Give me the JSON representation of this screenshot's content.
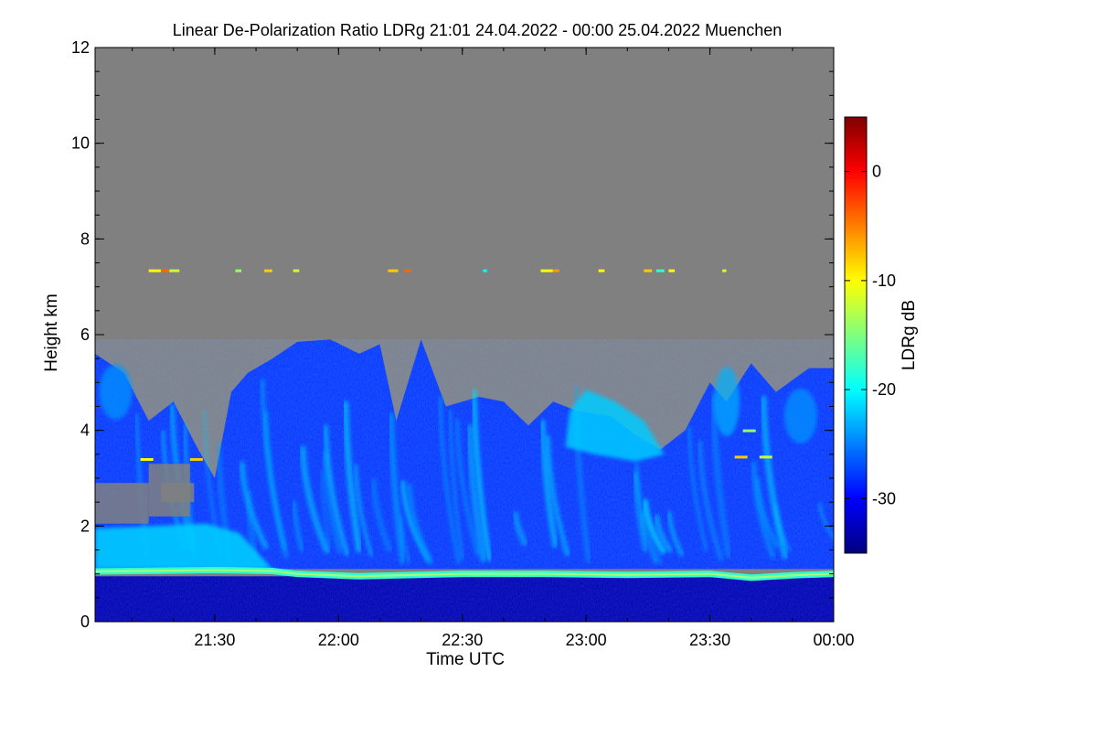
{
  "chart_data": {
    "type": "heatmap",
    "title": "Linear De-Polarization Ratio LDRg   21:01 24.04.2022 - 00:00 25.04.2022 Muenchen",
    "xlabel": "Time UTC",
    "ylabel": "Height km",
    "xlim": [
      "21:01",
      "00:00"
    ],
    "ylim": [
      0,
      12
    ],
    "x_ticks": [
      "21:30",
      "22:00",
      "22:30",
      "23:00",
      "23:30",
      "00:00"
    ],
    "y_ticks": [
      0,
      2,
      4,
      6,
      8,
      10,
      12
    ],
    "colorbar": {
      "label": "LDRg dB",
      "range": [
        -35,
        5
      ],
      "ticks": [
        0,
        -10,
        -20,
        -30
      ],
      "colormap": [
        "#00007f",
        "#0000ff",
        "#007fff",
        "#00ffff",
        "#7fff7f",
        "#ffff00",
        "#ff7f00",
        "#ff0000",
        "#7f0000"
      ]
    },
    "no_data_color": "#808080",
    "layers": [
      {
        "name": "near-surface layer",
        "height_km": [
          0,
          0.95
        ],
        "ldr_db": -33
      },
      {
        "name": "boundary layer top",
        "height_km": [
          0.95,
          1.1
        ],
        "ldr_db": -18
      },
      {
        "name": "aerosol layer",
        "time": [
          "21:01",
          "21:44"
        ],
        "height_km": [
          1.1,
          2.0
        ],
        "ldr_db": -22
      },
      {
        "name": "precipitation fall streaks",
        "time": [
          "21:01",
          "00:00"
        ],
        "height_km": [
          1.1,
          6.0
        ],
        "ldr_db": -28
      },
      {
        "name": "ice cloud",
        "time": [
          "22:55",
          "23:20"
        ],
        "height_km": [
          3.5,
          4.8
        ],
        "ldr_db": -22
      },
      {
        "name": "thin layer",
        "height_km": [
          7.25,
          7.4
        ],
        "ldr_db": -10
      }
    ]
  }
}
